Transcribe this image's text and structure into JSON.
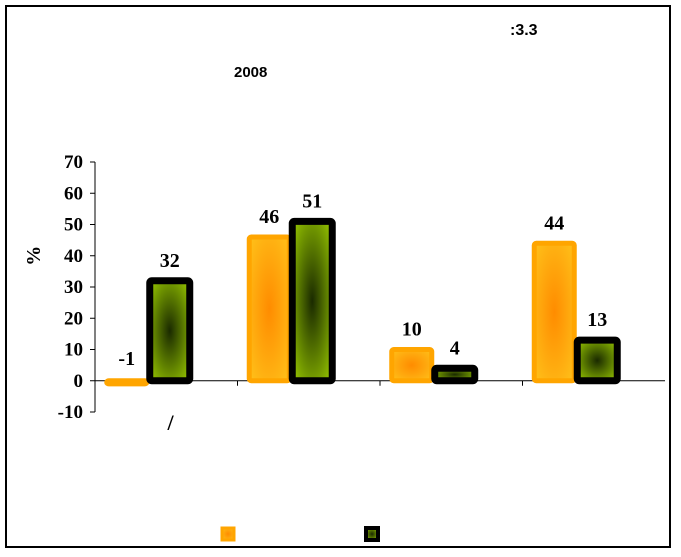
{
  "caption": ":3.3",
  "year_label": "2008",
  "colors": {
    "series1": "#ffa500",
    "series1_center": "#ff8c00",
    "series2": "#99cc00",
    "series2_center": "#1a2a00",
    "border": "#000000"
  },
  "chart_data": {
    "type": "bar",
    "title": "",
    "xlabel": "",
    "ylabel": "%",
    "ylim": [
      -10,
      70
    ],
    "yticks": [
      -10,
      0,
      10,
      20,
      30,
      40,
      50,
      60,
      70
    ],
    "categories": [
      "/",
      "",
      "",
      ""
    ],
    "series": [
      {
        "values": [
          -1,
          46,
          10,
          44
        ]
      },
      {
        "values": [
          32,
          51,
          4,
          13
        ]
      }
    ],
    "grid": false,
    "legend": "bottom"
  }
}
